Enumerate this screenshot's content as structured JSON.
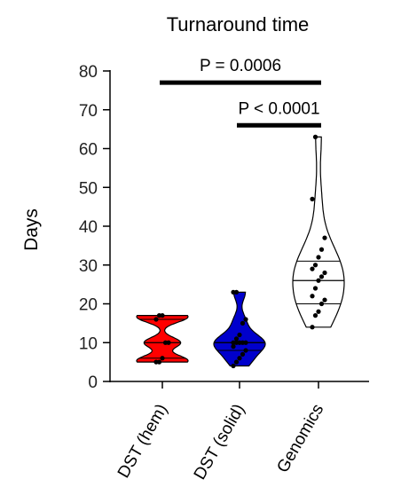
{
  "chart_data": {
    "type": "violin",
    "title": "Turnaround time",
    "ylabel": "Days",
    "ylim": [
      0,
      80
    ],
    "yticks": [
      "0",
      "10",
      "20",
      "30",
      "40",
      "50",
      "60",
      "70",
      "80"
    ],
    "categories": [
      "DST (hem)",
      "DST (solid)",
      "Genomics"
    ],
    "colors": {
      "DST (hem)": "#ff0000",
      "DST (solid)": "#0000cc",
      "Genomics": "#ffffff"
    },
    "series": [
      {
        "category": "DST (hem)",
        "min": 5,
        "max": 17,
        "median": 10,
        "q1": 6,
        "q3": 16,
        "points": [
          5,
          5,
          6,
          10,
          10,
          16,
          17,
          17
        ]
      },
      {
        "category": "DST (solid)",
        "min": 4,
        "max": 23,
        "median": 10,
        "q1": 8,
        "q3": 10,
        "points": [
          4,
          5,
          6,
          7,
          8,
          9,
          10,
          10,
          10,
          10,
          10,
          11,
          12,
          15,
          16,
          23,
          23
        ]
      },
      {
        "category": "Genomics",
        "min": 14,
        "max": 63,
        "median": 26,
        "q1": 20,
        "q3": 31,
        "points": [
          14,
          17,
          18,
          20,
          21,
          22,
          24,
          26,
          27,
          28,
          29,
          30,
          32,
          34,
          37,
          47,
          63
        ]
      }
    ],
    "annotations": [
      {
        "text": "P = 0.0006",
        "from": "DST (hem)",
        "to": "Genomics",
        "y": 77
      },
      {
        "text": "P < 0.0001",
        "from": "DST (solid)",
        "to": "Genomics",
        "y": 66
      }
    ]
  }
}
